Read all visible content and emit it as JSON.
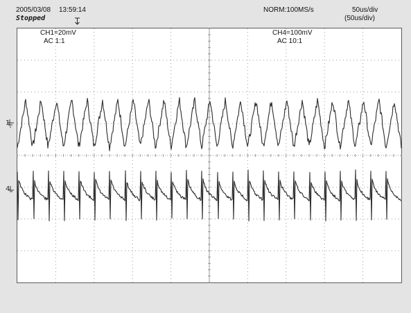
{
  "header": {
    "date": "2005/03/08",
    "time": "13:59:14",
    "status": "Stopped",
    "sample_rate": "NORM:100MS/s",
    "timebase": "50us/div",
    "timebase_secondary": "(50us/div)"
  },
  "channels": [
    {
      "id": "CH1",
      "scale_label": "CH1=20mV",
      "coupling_label": "AC  1:1",
      "marker": "1"
    },
    {
      "id": "CH4",
      "scale_label": "CH4=100mV",
      "coupling_label": "AC  10:1",
      "marker": "4"
    }
  ],
  "display": {
    "grid": {
      "divisions_x": 10,
      "divisions_y": 8,
      "style": "dotted"
    },
    "trace_color": "#2a2a2a",
    "grid_color": "#9a9a9a"
  },
  "traces": {
    "ch1": {
      "waveform": "triangular ripple",
      "cycles_on_screen": 25,
      "amplitude_div": 0.75,
      "offset_div": 1.0
    },
    "ch4": {
      "waveform": "periodic spike with decay",
      "cycles_on_screen": 25,
      "offset_div": -1.15
    }
  }
}
